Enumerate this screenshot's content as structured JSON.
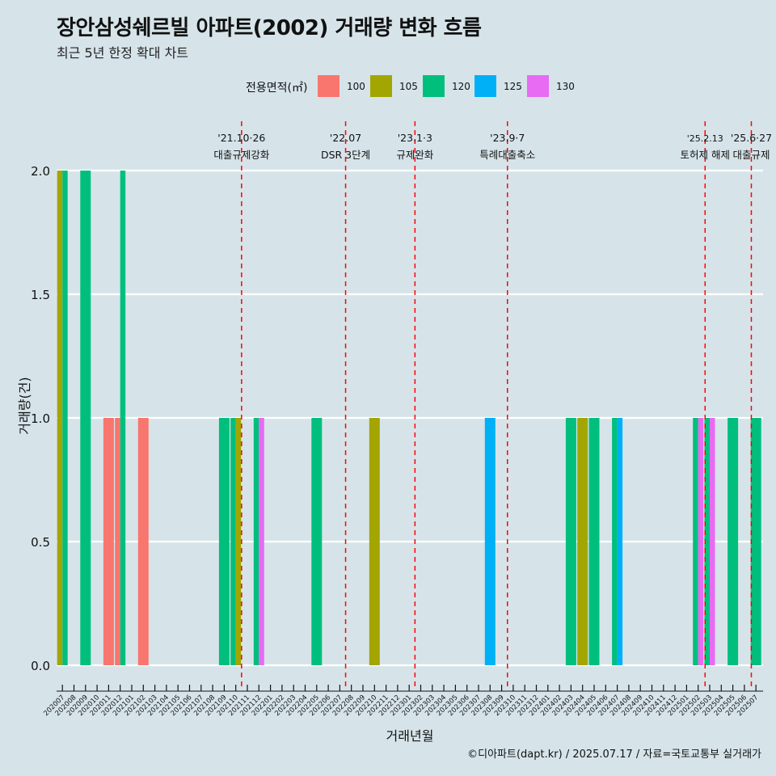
{
  "title": "장안삼성쉐르빌 아파트(2002) 거래량 변화 흐름",
  "subtitle": "최근 5년 한정 확대 차트",
  "caption": "©디아파트(dapt.kr) / 2025.07.17 / 자료=국토교통부 실거래가",
  "legend": {
    "title": "전용면적(㎡)",
    "items": [
      {
        "label": "100",
        "color": "#f8766d"
      },
      {
        "label": "105",
        "color": "#a3a500"
      },
      {
        "label": "120",
        "color": "#00bf7d"
      },
      {
        "label": "125",
        "color": "#00b0f6"
      },
      {
        "label": "130",
        "color": "#e76bf3"
      }
    ]
  },
  "chart_data": {
    "type": "bar",
    "xlabel": "거래년월",
    "ylabel": "거래량(건)",
    "ylim": [
      0,
      2
    ],
    "yticks": [
      "0.0",
      "0.5",
      "1.0",
      "1.5",
      "2.0"
    ],
    "grid": true,
    "legend_position": "top",
    "categories": [
      "202007",
      "202008",
      "202009",
      "202010",
      "202011",
      "202012",
      "202101",
      "202102",
      "202103",
      "202104",
      "202105",
      "202106",
      "202107",
      "202108",
      "202109",
      "202110",
      "202111",
      "202112",
      "202201",
      "202202",
      "202203",
      "202204",
      "202205",
      "202206",
      "202207",
      "202208",
      "202209",
      "202210",
      "202211",
      "202212",
      "202301",
      "202302",
      "202303",
      "202304",
      "202305",
      "202306",
      "202307",
      "202308",
      "202309",
      "202310",
      "202311",
      "202312",
      "202401",
      "202402",
      "202403",
      "202404",
      "202405",
      "202406",
      "202407",
      "202408",
      "202409",
      "202410",
      "202411",
      "202412",
      "202501",
      "202502",
      "202503",
      "202504",
      "202505",
      "202506",
      "202507"
    ],
    "bars": [
      {
        "month": "202007",
        "segments": [
          {
            "area": "105",
            "value": 2
          },
          {
            "area": "120",
            "value": 2
          }
        ]
      },
      {
        "month": "202009",
        "segments": [
          {
            "area": "120",
            "value": 2
          }
        ]
      },
      {
        "month": "202011",
        "segments": [
          {
            "area": "100",
            "value": 1
          }
        ]
      },
      {
        "month": "202012",
        "segments": [
          {
            "area": "100",
            "value": 1
          },
          {
            "area": "120",
            "value": 2
          }
        ]
      },
      {
        "month": "202102",
        "segments": [
          {
            "area": "100",
            "value": 1
          }
        ]
      },
      {
        "month": "202109",
        "segments": [
          {
            "area": "120",
            "value": 1
          }
        ]
      },
      {
        "month": "202110",
        "segments": [
          {
            "area": "120",
            "value": 1
          },
          {
            "area": "105",
            "value": 1
          }
        ]
      },
      {
        "month": "202112",
        "segments": [
          {
            "area": "120",
            "value": 1
          },
          {
            "area": "130",
            "value": 1
          }
        ]
      },
      {
        "month": "202205",
        "segments": [
          {
            "area": "120",
            "value": 1
          }
        ]
      },
      {
        "month": "202210",
        "segments": [
          {
            "area": "105",
            "value": 1
          }
        ]
      },
      {
        "month": "202308",
        "segments": [
          {
            "area": "125",
            "value": 1
          }
        ]
      },
      {
        "month": "202403",
        "segments": [
          {
            "area": "120",
            "value": 1
          }
        ]
      },
      {
        "month": "202404",
        "segments": [
          {
            "area": "105",
            "value": 1
          }
        ]
      },
      {
        "month": "202405",
        "segments": [
          {
            "area": "120",
            "value": 1
          }
        ]
      },
      {
        "month": "202407",
        "segments": [
          {
            "area": "120",
            "value": 1
          },
          {
            "area": "125",
            "value": 1
          }
        ]
      },
      {
        "month": "202502",
        "segments": [
          {
            "area": "120",
            "value": 1
          },
          {
            "area": "130",
            "value": 1
          }
        ]
      },
      {
        "month": "202503",
        "segments": [
          {
            "area": "120",
            "value": 1
          },
          {
            "area": "130",
            "value": 1
          }
        ]
      },
      {
        "month": "202505",
        "segments": [
          {
            "area": "120",
            "value": 1
          }
        ]
      },
      {
        "month": "202507",
        "segments": [
          {
            "area": "120",
            "value": 1
          }
        ]
      }
    ],
    "events": [
      {
        "month": 15.5,
        "date": "'21.10·26",
        "label": "대출규제강화"
      },
      {
        "month": 24.5,
        "date": "'22.07",
        "label": "DSR 3단계"
      },
      {
        "month": 30.5,
        "date": "'23.1·3",
        "label": "규제완화"
      },
      {
        "month": 38.5,
        "date": "'23.9·7",
        "label": "특례대출축소"
      },
      {
        "month": 55.6,
        "date": "'25.2.13",
        "label": "토허제 해제"
      },
      {
        "month": 59.6,
        "date": "'25.6·27",
        "label": "대출규제"
      }
    ]
  }
}
